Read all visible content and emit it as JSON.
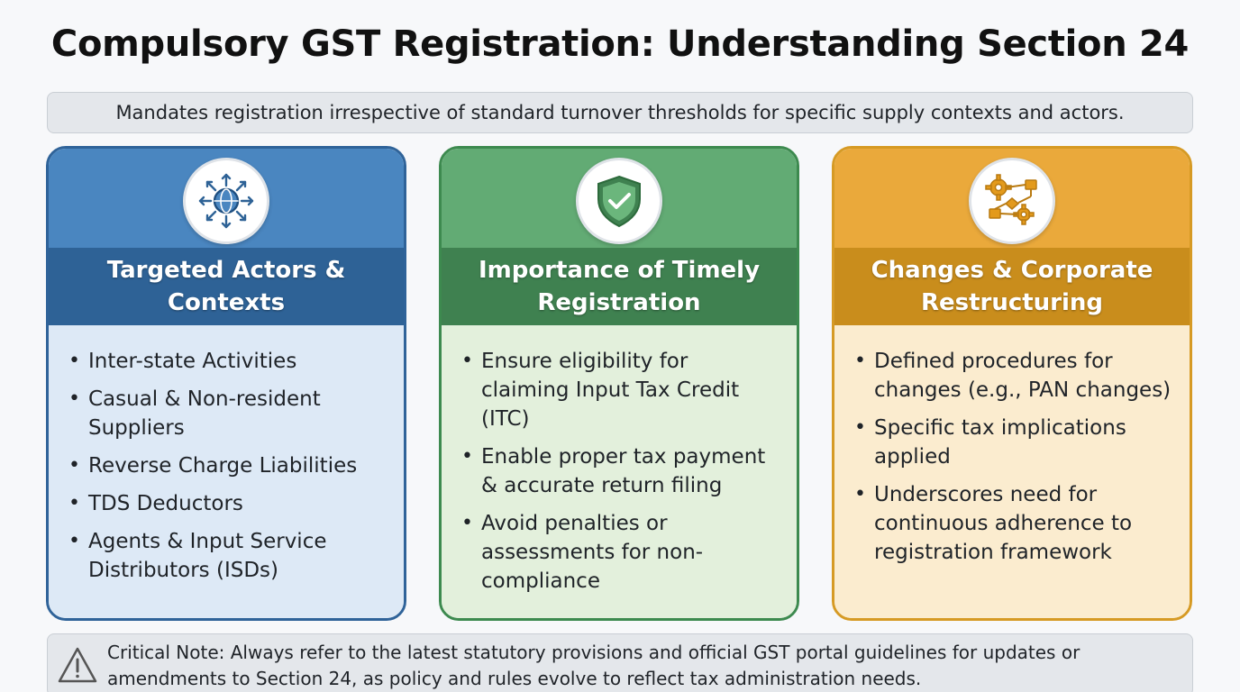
{
  "title": "Compulsory GST Registration: Understanding Section 24",
  "subtitle": "Mandates registration irrespective of standard turnover thresholds for specific supply contexts and actors.",
  "cards": [
    {
      "heading": "Targeted Actors & Contexts",
      "icon": "globe-arrows-icon",
      "color": "#2e6296",
      "points": [
        "Inter-state Activities",
        "Casual & Non-resident Suppliers",
        "Reverse Charge Liabilities",
        "TDS Deductors",
        "Agents & Input Service Distributors (ISDs)"
      ]
    },
    {
      "heading": "Importance of Timely Registration",
      "icon": "shield-check-icon",
      "color": "#3f8150",
      "points": [
        "Ensure eligibility for claiming Input Tax Credit (ITC)",
        "Enable proper tax payment & accurate return filing",
        "Avoid penalties or assessments for non-compliance"
      ]
    },
    {
      "heading": "Changes & Corporate Restructuring",
      "icon": "gears-flowchart-icon",
      "color": "#c98d1c",
      "points": [
        "Defined procedures for changes (e.g., PAN changes)",
        "Specific tax implications applied",
        "Underscores need for continuous adherence to registration framework"
      ]
    }
  ],
  "note": "Critical Note: Always refer to the latest statutory provisions and official GST portal guidelines for updates or amendments to Section 24, as policy and rules evolve to reflect tax administration needs."
}
